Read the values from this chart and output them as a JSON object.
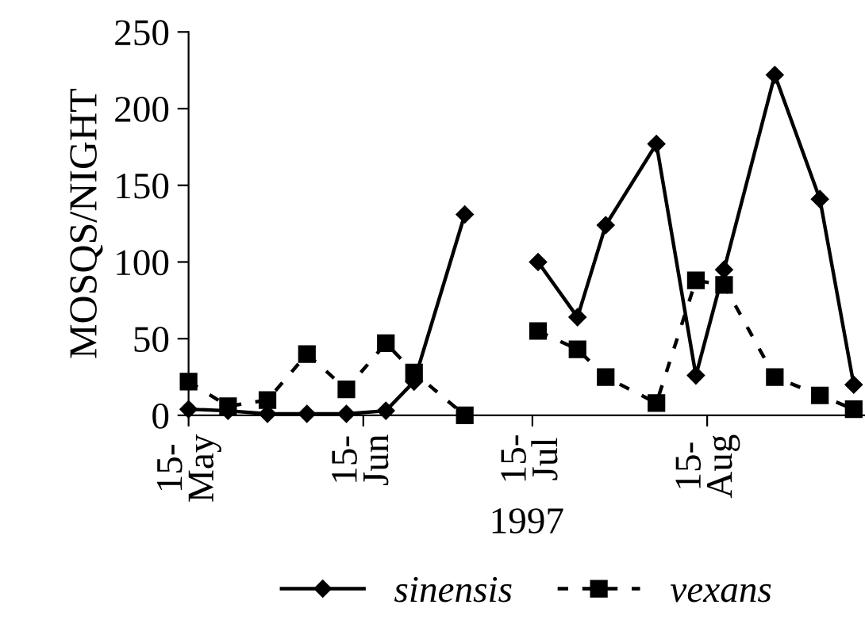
{
  "chart_data": {
    "type": "line",
    "ylabel": "MOSQS/NIGHT",
    "xlabel": "1997",
    "x": [
      "1997-05-15",
      "1997-05-22",
      "1997-05-29",
      "1997-06-05",
      "1997-06-12",
      "1997-06-19",
      "1997-06-24",
      "1997-07-03",
      "1997-07-10",
      "1997-07-16",
      "1997-07-23",
      "1997-07-28",
      "1997-08-06",
      "1997-08-13",
      "1997-08-18",
      "1997-08-27",
      "1997-09-04",
      "1997-09-10"
    ],
    "series": [
      {
        "name": "sinensis",
        "color": "#000000",
        "marker": "diamond",
        "line_style": "solid",
        "values": [
          4,
          3,
          1,
          1,
          1,
          3,
          22,
          131,
          null,
          100,
          64,
          124,
          177,
          26,
          95,
          222,
          141,
          20
        ]
      },
      {
        "name": "vexans",
        "color": "#000000",
        "marker": "square",
        "line_style": "dashed",
        "values": [
          22,
          6,
          10,
          40,
          17,
          47,
          28,
          0,
          null,
          55,
          43,
          25,
          8,
          88,
          85,
          25,
          13,
          4
        ]
      }
    ],
    "xlim": [
      "1997-05-15",
      "1997-09-12"
    ],
    "xticks": [
      {
        "value": "1997-05-15",
        "label": "15-\nMay"
      },
      {
        "value": "1997-06-15",
        "label": "15-\nJun"
      },
      {
        "value": "1997-07-15",
        "label": "15-\nJul"
      },
      {
        "value": "1997-08-15",
        "label": "15-\nAug"
      }
    ],
    "ylim": [
      0,
      250
    ],
    "yticks": [
      0,
      50,
      100,
      150,
      200,
      250
    ],
    "grid": false,
    "legend": "bottom"
  }
}
